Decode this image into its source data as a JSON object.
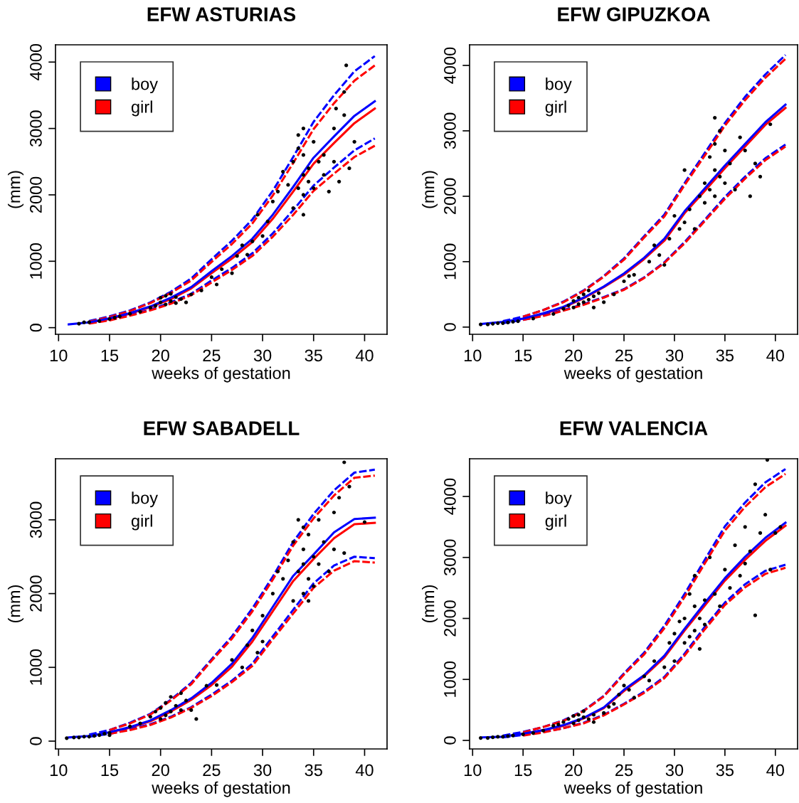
{
  "chart_data": [
    {
      "type": "line",
      "title": "EFW ASTURIAS",
      "xlabel": "weeks of gestation",
      "ylabel": "(mm)",
      "xlim": [
        9.7,
        42.2
      ],
      "ylim": [
        -100,
        4260
      ],
      "xticks": [
        10,
        15,
        20,
        25,
        30,
        35,
        40
      ],
      "yticks": [
        0,
        1000,
        2000,
        3000,
        4000
      ],
      "grid": false,
      "legend": "top left",
      "x": [
        11,
        13,
        15,
        17,
        19,
        21,
        23,
        25,
        27,
        29,
        31,
        33,
        35,
        37,
        39,
        41
      ],
      "series": [
        {
          "type": "scatter",
          "color": "#000000",
          "marker": "circle",
          "x": [
            12,
            12.5,
            13,
            14,
            15,
            15.5,
            16,
            17,
            18,
            19,
            19.5,
            20,
            20,
            20.5,
            20.5,
            21,
            21,
            21.5,
            21.5,
            22,
            22.5,
            23,
            24,
            25,
            25.5,
            26,
            27,
            27.5,
            28,
            28.5,
            29,
            29.5,
            30,
            30.5,
            31,
            31.5,
            32,
            32.5,
            33,
            33,
            33.5,
            33.5,
            33.5,
            34,
            34,
            34,
            34,
            34,
            34.5,
            34.5,
            35,
            35,
            35.5,
            36,
            36,
            36.5,
            37,
            37,
            37.5,
            38,
            38,
            38.5,
            39,
            38.2,
            37.2
          ],
          "values": [
            60,
            80,
            80,
            100,
            130,
            150,
            170,
            210,
            240,
            300,
            330,
            380,
            450,
            350,
            480,
            400,
            510,
            370,
            460,
            430,
            380,
            500,
            560,
            760,
            650,
            880,
            820,
            1080,
            1240,
            1100,
            1300,
            1700,
            1380,
            1600,
            1900,
            2050,
            2350,
            2150,
            1800,
            2500,
            2700,
            2100,
            2900,
            1700,
            2000,
            2300,
            2600,
            3000,
            2400,
            2200,
            2800,
            2100,
            2500,
            2600,
            2300,
            2050,
            3000,
            2500,
            2200,
            3550,
            3200,
            2400,
            2800,
            3950,
            3300
          ]
        },
        {
          "name": "boy",
          "color": "#0000ff",
          "line_style": "solid",
          "values": [
            50,
            80,
            140,
            220,
            320,
            450,
            610,
            850,
            1080,
            1340,
            1700,
            2120,
            2560,
            2880,
            3190,
            3410
          ]
        },
        {
          "name": "girl",
          "color": "#ff0000",
          "line_style": "solid",
          "values": [
            null,
            80,
            130,
            210,
            310,
            430,
            590,
            820,
            1040,
            1290,
            1640,
            2050,
            2470,
            2780,
            3080,
            3300
          ]
        },
        {
          "color": "#0000ff",
          "line_style": "dashed",
          "values": [
            null,
            100,
            170,
            260,
            380,
            540,
            740,
            1030,
            1310,
            1630,
            2060,
            2570,
            3100,
            3500,
            3860,
            4090
          ]
        },
        {
          "color": "#ff0000",
          "line_style": "dashed",
          "values": [
            null,
            90,
            160,
            250,
            370,
            520,
            710,
            990,
            1260,
            1570,
            1990,
            2480,
            2990,
            3380,
            3720,
            3950
          ]
        },
        {
          "color": "#0000ff",
          "line_style": "dashed",
          "values": [
            null,
            70,
            120,
            190,
            270,
            380,
            510,
            710,
            900,
            1120,
            1420,
            1770,
            2140,
            2410,
            2670,
            2850
          ]
        },
        {
          "color": "#ff0000",
          "line_style": "dashed",
          "values": [
            null,
            60,
            110,
            180,
            260,
            360,
            490,
            680,
            870,
            1080,
            1370,
            1700,
            2060,
            2320,
            2570,
            2740
          ]
        }
      ]
    },
    {
      "type": "line",
      "title": "EFW GIPUZKOA",
      "xlabel": "weeks of gestation",
      "ylabel": "(mm)",
      "xlim": [
        9.7,
        42.2
      ],
      "ylim": [
        -110,
        4315
      ],
      "xticks": [
        10,
        15,
        20,
        25,
        30,
        35,
        40
      ],
      "yticks": [
        0,
        1000,
        2000,
        3000,
        4000
      ],
      "grid": false,
      "legend": "top left",
      "x": [
        11,
        13,
        15,
        17,
        19,
        21,
        23,
        25,
        27,
        29,
        31,
        33,
        35,
        37,
        39,
        41
      ],
      "series": [
        {
          "type": "scatter",
          "color": "#000000",
          "marker": "circle",
          "x": [
            10.8,
            11.5,
            12,
            12.5,
            13,
            13.5,
            14,
            14.5,
            16,
            18,
            19,
            19.5,
            20,
            20,
            20.5,
            20.5,
            21,
            21,
            21.5,
            21.5,
            22,
            22.5,
            23,
            22,
            24,
            25,
            25.5,
            26,
            27.5,
            28,
            28.5,
            29,
            29.5,
            30,
            30.5,
            31,
            31,
            31.5,
            32,
            32.5,
            33,
            33,
            33.5,
            33.5,
            34,
            34,
            34,
            34,
            34.5,
            34.5,
            35,
            35,
            35.5,
            36,
            36.5,
            37,
            37.5,
            38,
            38.5,
            39.5
          ],
          "values": [
            40,
            40,
            50,
            60,
            60,
            70,
            80,
            90,
            130,
            200,
            280,
            330,
            300,
            400,
            450,
            350,
            500,
            380,
            420,
            560,
            470,
            520,
            380,
            300,
            500,
            700,
            780,
            800,
            1000,
            1250,
            1100,
            950,
            1350,
            1700,
            1500,
            2400,
            1600,
            1800,
            1500,
            2000,
            2200,
            1900,
            2600,
            2100,
            3200,
            2800,
            2400,
            2000,
            3000,
            2300,
            2200,
            2700,
            2500,
            2100,
            2900,
            2700,
            2000,
            2500,
            2300,
            3100
          ]
        },
        {
          "name": "boy",
          "color": "#0000ff",
          "line_style": "solid",
          "values": [
            50,
            80,
            130,
            210,
            310,
            450,
            620,
            820,
            1060,
            1350,
            1770,
            2120,
            2470,
            2800,
            3130,
            3400
          ]
        },
        {
          "name": "girl",
          "color": "#ff0000",
          "line_style": "solid",
          "values": [
            null,
            null,
            130,
            200,
            300,
            440,
            610,
            800,
            1040,
            1320,
            1740,
            2080,
            2430,
            2760,
            3090,
            3350
          ]
        },
        {
          "color": "#0000ff",
          "line_style": "dashed",
          "values": [
            null,
            90,
            160,
            260,
            390,
            560,
            780,
            1050,
            1390,
            1720,
            2200,
            2660,
            3120,
            3520,
            3860,
            4160
          ]
        },
        {
          "color": "#ff0000",
          "line_style": "dashed",
          "values": [
            null,
            null,
            160,
            260,
            380,
            550,
            770,
            1030,
            1370,
            1690,
            2170,
            2620,
            3080,
            3470,
            3810,
            4100
          ]
        },
        {
          "color": "#0000ff",
          "line_style": "dashed",
          "values": [
            null,
            60,
            110,
            180,
            260,
            350,
            460,
            580,
            760,
            990,
            1300,
            1640,
            1990,
            2300,
            2580,
            2790
          ]
        },
        {
          "color": "#ff0000",
          "line_style": "dashed",
          "values": [
            null,
            null,
            110,
            170,
            250,
            340,
            450,
            570,
            750,
            980,
            1280,
            1620,
            1960,
            2270,
            2550,
            2760
          ]
        }
      ]
    },
    {
      "type": "line",
      "title": "EFW SABADELL",
      "xlabel": "weeks of gestation",
      "ylabel": "(mm)",
      "xlim": [
        9.7,
        42.2
      ],
      "ylim": [
        -106,
        3828
      ],
      "xticks": [
        10,
        15,
        20,
        25,
        30,
        35,
        40
      ],
      "yticks": [
        0,
        1000,
        2000,
        3000
      ],
      "grid": false,
      "legend": "top left",
      "x": [
        11,
        13,
        15,
        17,
        19,
        21,
        23,
        25,
        27,
        29,
        31,
        33,
        35,
        37,
        39,
        41
      ],
      "series": [
        {
          "type": "scatter",
          "color": "#000000",
          "marker": "circle",
          "x": [
            10.8,
            11.5,
            12,
            12.5,
            13,
            13.5,
            14,
            14.5,
            15,
            15,
            17,
            18,
            19,
            19.5,
            20,
            20,
            20.5,
            20.5,
            21,
            21,
            21.5,
            22,
            22,
            22.5,
            23,
            23.5,
            24.5,
            25.5,
            27,
            28,
            28.5,
            29,
            29.5,
            30,
            30,
            31,
            31.5,
            32,
            32.5,
            33,
            33,
            33.5,
            33.5,
            34,
            34,
            34,
            34,
            34.5,
            34.5,
            34.5,
            35,
            35,
            35.5,
            35.5,
            36,
            36.5,
            37,
            37,
            37.5,
            38,
            38.5,
            40,
            38
          ],
          "values": [
            40,
            50,
            50,
            60,
            60,
            70,
            80,
            100,
            110,
            80,
            200,
            240,
            330,
            400,
            300,
            450,
            520,
            350,
            400,
            600,
            480,
            420,
            650,
            550,
            420,
            300,
            750,
            760,
            1100,
            1000,
            1300,
            1500,
            1200,
            1700,
            1350,
            2000,
            2300,
            2200,
            2450,
            1900,
            2700,
            2300,
            3000,
            2000,
            2400,
            2600,
            2900,
            1900,
            2200,
            2800,
            2500,
            2100,
            3000,
            2400,
            2700,
            2300,
            3100,
            2600,
            3300,
            3780,
            3450,
            2970,
            2550
          ]
        },
        {
          "name": "boy",
          "color": "#0000ff",
          "line_style": "solid",
          "values": [
            50,
            70,
            120,
            190,
            280,
            420,
            580,
            790,
            1050,
            1400,
            1820,
            2240,
            2530,
            2830,
            3010,
            3030
          ]
        },
        {
          "name": "girl",
          "color": "#ff0000",
          "line_style": "solid",
          "values": [
            null,
            null,
            120,
            180,
            270,
            400,
            560,
            760,
            1010,
            1350,
            1760,
            2170,
            2470,
            2750,
            2940,
            2960
          ]
        },
        {
          "color": "#0000ff",
          "line_style": "dashed",
          "values": [
            null,
            90,
            150,
            250,
            370,
            560,
            790,
            1110,
            1420,
            1800,
            2230,
            2700,
            3080,
            3400,
            3640,
            3680
          ]
        },
        {
          "color": "#ff0000",
          "line_style": "dashed",
          "values": [
            null,
            null,
            150,
            240,
            360,
            550,
            770,
            1090,
            1390,
            1760,
            2190,
            2650,
            3020,
            3330,
            3570,
            3600
          ]
        },
        {
          "color": "#0000ff",
          "line_style": "dashed",
          "values": [
            null,
            60,
            100,
            160,
            230,
            330,
            460,
            630,
            820,
            1050,
            1420,
            1780,
            2140,
            2380,
            2500,
            2480
          ]
        },
        {
          "color": "#ff0000",
          "line_style": "dashed",
          "values": [
            null,
            null,
            100,
            150,
            220,
            320,
            450,
            610,
            800,
            1020,
            1380,
            1730,
            2080,
            2310,
            2440,
            2420
          ]
        }
      ]
    },
    {
      "type": "line",
      "title": "EFW VALENCIA",
      "xlabel": "weeks of gestation",
      "ylabel": "(mm)",
      "xlim": [
        9.7,
        42.2
      ],
      "ylim": [
        -140,
        4618
      ],
      "xticks": [
        10,
        15,
        20,
        25,
        30,
        35,
        40
      ],
      "yticks": [
        0,
        1000,
        2000,
        3000,
        4000
      ],
      "grid": false,
      "legend": "top left",
      "x": [
        11,
        13,
        15,
        17,
        19,
        21,
        23,
        25,
        27,
        29,
        31,
        33,
        35,
        37,
        39,
        41
      ],
      "series": [
        {
          "type": "scatter",
          "color": "#000000",
          "marker": "circle",
          "x": [
            10.8,
            11.5,
            12,
            12.5,
            13,
            13.5,
            14,
            15,
            16,
            17,
            18,
            18.5,
            19,
            19.5,
            20,
            20,
            20.5,
            20.5,
            21,
            21,
            21.5,
            22,
            22,
            23,
            23.5,
            24,
            24.5,
            25,
            25.5,
            26,
            27,
            27.5,
            28,
            29,
            29.5,
            30,
            30,
            30.5,
            31,
            31,
            31.5,
            31.5,
            32,
            32,
            32,
            32.5,
            32.5,
            33,
            33,
            33.5,
            34,
            34.5,
            35,
            35.5,
            36,
            36.5,
            37,
            37,
            37.5,
            38,
            38,
            38.5,
            39,
            39.5,
            40,
            40.5,
            39.2
          ],
          "values": [
            40,
            40,
            50,
            60,
            60,
            70,
            80,
            100,
            120,
            160,
            240,
            260,
            300,
            350,
            280,
            400,
            420,
            330,
            380,
            480,
            350,
            420,
            300,
            450,
            550,
            600,
            750,
            900,
            830,
            700,
            1050,
            980,
            1300,
            1200,
            1600,
            1750,
            1300,
            1950,
            2000,
            1600,
            2400,
            1700,
            2200,
            1800,
            2700,
            2000,
            1500,
            2300,
            1900,
            3000,
            2400,
            2200,
            2800,
            2500,
            3200,
            2700,
            3500,
            2900,
            3100,
            4200,
            2050,
            3400,
            3700,
            2800,
            3400,
            3500,
            4600
          ]
        },
        {
          "name": "boy",
          "color": "#0000ff",
          "line_style": "solid",
          "values": [
            50,
            60,
            110,
            170,
            250,
            370,
            540,
            830,
            1070,
            1390,
            1830,
            2250,
            2660,
            3010,
            3320,
            3570
          ]
        },
        {
          "name": "girl",
          "color": "#ff0000",
          "line_style": "solid",
          "values": [
            null,
            null,
            100,
            170,
            240,
            360,
            530,
            810,
            1050,
            1360,
            1800,
            2210,
            2620,
            2960,
            3270,
            3520
          ]
        },
        {
          "color": "#0000ff",
          "line_style": "dashed",
          "values": [
            null,
            80,
            140,
            220,
            330,
            490,
            730,
            1100,
            1440,
            1880,
            2400,
            2960,
            3510,
            3900,
            4230,
            4450
          ]
        },
        {
          "color": "#ff0000",
          "line_style": "dashed",
          "values": [
            null,
            null,
            130,
            220,
            320,
            480,
            720,
            1080,
            1410,
            1840,
            2350,
            2900,
            3440,
            3830,
            4150,
            4370
          ]
        },
        {
          "color": "#0000ff",
          "line_style": "dashed",
          "values": [
            null,
            50,
            90,
            140,
            200,
            290,
            420,
            600,
            800,
            1040,
            1420,
            1860,
            2260,
            2560,
            2780,
            2880
          ]
        },
        {
          "color": "#ff0000",
          "line_style": "dashed",
          "values": [
            null,
            null,
            80,
            130,
            200,
            280,
            410,
            590,
            780,
            1020,
            1390,
            1820,
            2220,
            2510,
            2730,
            2830
          ]
        }
      ]
    }
  ]
}
